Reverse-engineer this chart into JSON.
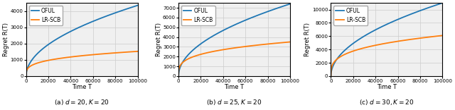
{
  "subplots": [
    {
      "caption": "(a) $d = 20, K = 20$",
      "oful_final": 4350,
      "lrscb_final": 1520,
      "ylim": [
        0,
        4500
      ],
      "yticks": [
        0,
        1000,
        2000,
        3000,
        4000
      ],
      "oful_exponent": 0.5,
      "lrscb_exponent": 0.28
    },
    {
      "caption": "(b) $d = 25, K = 20$",
      "oful_final": 7400,
      "lrscb_final": 3500,
      "ylim": [
        0,
        7500
      ],
      "yticks": [
        0,
        1000,
        2000,
        3000,
        4000,
        5000,
        6000,
        7000
      ],
      "oful_exponent": 0.5,
      "lrscb_exponent": 0.28
    },
    {
      "caption": "(c) $d = 30, K = 20$",
      "oful_final": 11000,
      "lrscb_final": 6100,
      "ylim": [
        0,
        11000
      ],
      "yticks": [
        0,
        2000,
        4000,
        6000,
        8000,
        10000
      ],
      "oful_exponent": 0.5,
      "lrscb_exponent": 0.3
    }
  ],
  "T_max": 100000,
  "xlabel": "Time T",
  "ylabel": "Regret R(T)",
  "oful_color": "#1f77b4",
  "lrscb_color": "#ff7f0e",
  "oful_label": "OFUL",
  "lrscb_label": "LR-SCB",
  "xticks": [
    0,
    20000,
    40000,
    60000,
    80000,
    100000
  ],
  "xticklabels": [
    "0",
    "20000",
    "40000",
    "60000",
    "80000",
    "100000"
  ],
  "grid_color": "#cccccc",
  "bg_color": "#f0f0f0",
  "tick_fontsize": 5.0,
  "label_fontsize": 6.0,
  "caption_fontsize": 6.5,
  "legend_fontsize": 5.5,
  "linewidth": 1.3
}
